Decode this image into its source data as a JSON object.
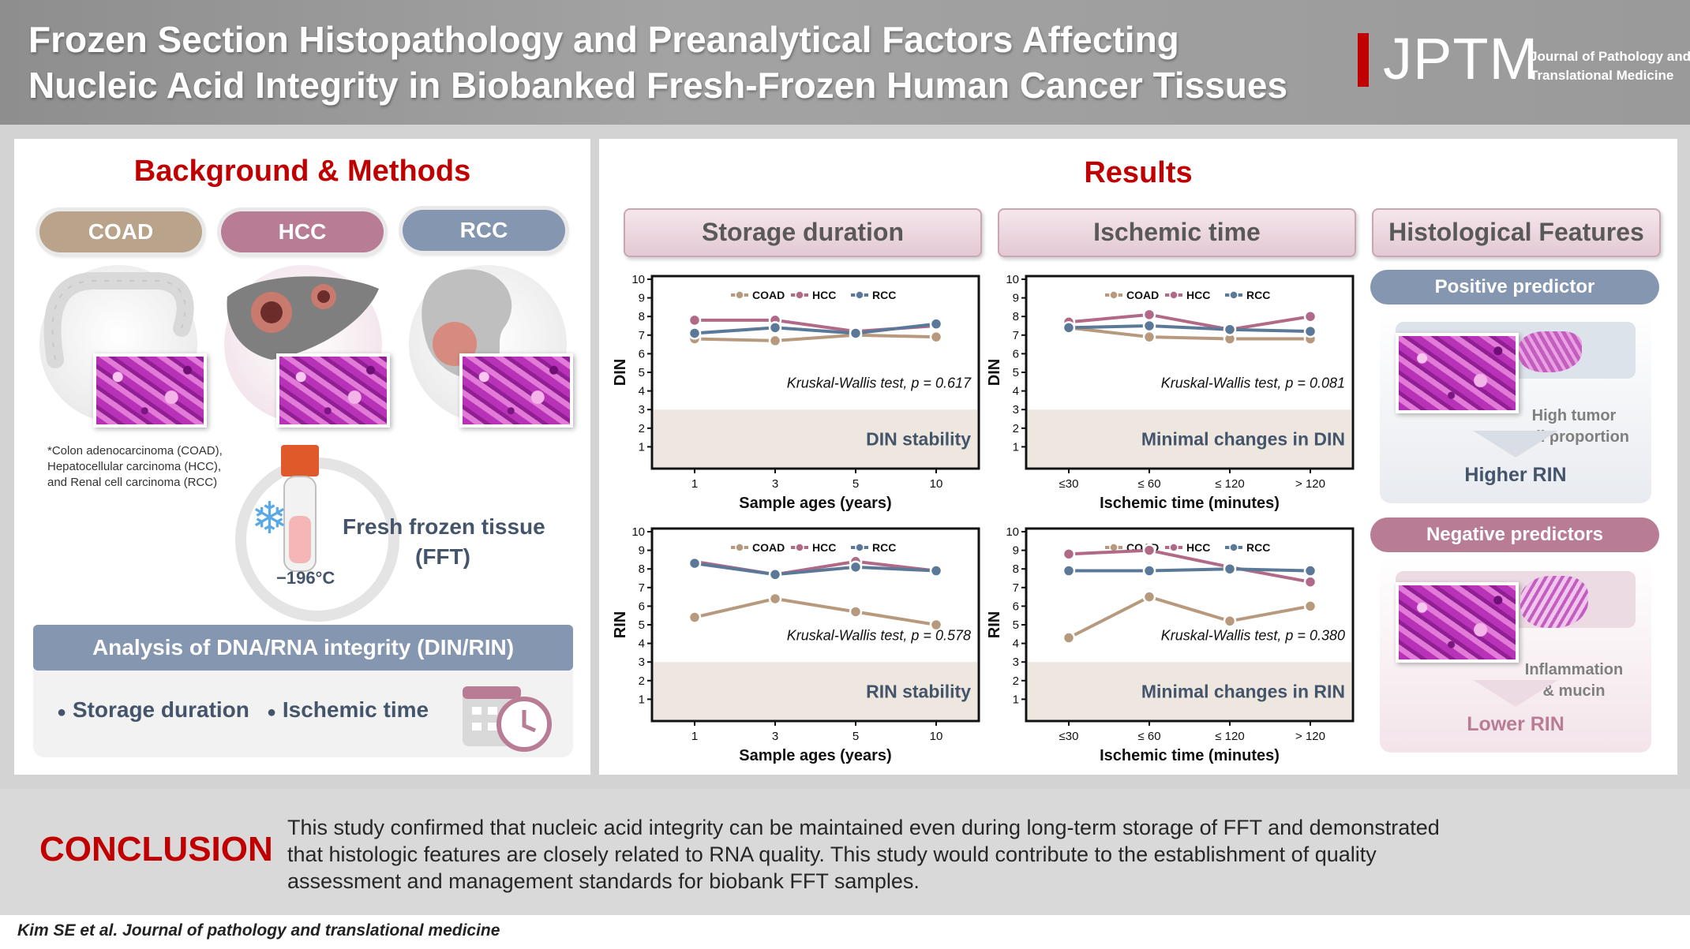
{
  "header": {
    "title_line1": "Frozen Section Histopathology and Preanalytical Factors Affecting",
    "title_line2": "Nucleic Acid Integrity in Biobanked Fresh-Frozen Human Cancer Tissues",
    "logo": "JPTM",
    "logo_sub1": "Journal of Pathology and",
    "logo_sub2": "Translational Medicine"
  },
  "left": {
    "title": "Background & Methods",
    "cancers": [
      "COAD",
      "HCC",
      "RCC"
    ],
    "note_lines": [
      "*Colon adenocarcinoma (COAD),",
      "Hepatocellular carcinoma (HCC),",
      "and Renal cell carcinoma (RCC)"
    ],
    "fft_line1": "Fresh frozen tissue",
    "fft_line2": "(FFT)",
    "temperature": "−196°C",
    "analysis_title": "Analysis of DNA/RNA integrity (DIN/RIN)",
    "bullets": [
      "Storage duration",
      "Ischemic time"
    ]
  },
  "results": {
    "title": "Results",
    "headers": [
      "Storage duration",
      "Ischemic time",
      "Histological Features"
    ],
    "positive": {
      "label": "Positive predictor",
      "text1": "High tumor",
      "text2": "cell proportion",
      "result": "Higher RIN"
    },
    "negative": {
      "label": "Negative predictors",
      "text1": "Inflammation",
      "text2": "& mucin",
      "result": "Lower RIN"
    }
  },
  "colors": {
    "COAD": "#b79a7e",
    "HCC": "#b06a88",
    "RCC": "#5b7898",
    "accent": "#c00000"
  },
  "chart_data": [
    {
      "type": "line",
      "categories": [
        "1",
        "3",
        "5",
        "10"
      ],
      "series": [
        {
          "name": "COAD",
          "values": [
            6.8,
            6.7,
            7.0,
            6.9
          ]
        },
        {
          "name": "HCC",
          "values": [
            7.8,
            7.8,
            7.2,
            7.5
          ]
        },
        {
          "name": "RCC",
          "values": [
            7.1,
            7.4,
            7.1,
            7.6
          ]
        }
      ],
      "xlabel": "Sample ages (years)",
      "ylabel": "DIN",
      "ylim": [
        0,
        10
      ],
      "yticks": [
        1,
        2,
        3,
        4,
        5,
        6,
        7,
        8,
        9,
        10
      ],
      "test": "Kruskal-Wallis test, p = 0.617",
      "banner": "DIN stability"
    },
    {
      "type": "line",
      "categories": [
        "≤30",
        "≤ 60",
        "≤ 120",
        "> 120"
      ],
      "series": [
        {
          "name": "COAD",
          "values": [
            7.4,
            6.9,
            6.8,
            6.8
          ]
        },
        {
          "name": "HCC",
          "values": [
            7.7,
            8.1,
            7.3,
            8.0
          ]
        },
        {
          "name": "RCC",
          "values": [
            7.4,
            7.5,
            7.3,
            7.2
          ]
        }
      ],
      "xlabel": "Ischemic time (minutes)",
      "ylabel": "DIN",
      "ylim": [
        0,
        10
      ],
      "yticks": [
        1,
        2,
        3,
        4,
        5,
        6,
        7,
        8,
        9,
        10
      ],
      "test": "Kruskal-Wallis test, p = 0.081",
      "banner": "Minimal changes in DIN"
    },
    {
      "type": "line",
      "categories": [
        "1",
        "3",
        "5",
        "10"
      ],
      "series": [
        {
          "name": "COAD",
          "values": [
            5.4,
            6.4,
            5.7,
            5.0
          ]
        },
        {
          "name": "HCC",
          "values": [
            8.4,
            7.7,
            8.4,
            7.9
          ]
        },
        {
          "name": "RCC",
          "values": [
            8.3,
            7.7,
            8.1,
            7.9
          ]
        }
      ],
      "xlabel": "Sample ages (years)",
      "ylabel": "RIN",
      "ylim": [
        0,
        10
      ],
      "yticks": [
        1,
        2,
        3,
        4,
        5,
        6,
        7,
        8,
        9,
        10
      ],
      "test": "Kruskal-Wallis test, p = 0.578",
      "banner": "RIN stability"
    },
    {
      "type": "line",
      "categories": [
        "≤30",
        "≤ 60",
        "≤ 120",
        "> 120"
      ],
      "series": [
        {
          "name": "COAD",
          "values": [
            4.3,
            6.5,
            5.2,
            6.0
          ]
        },
        {
          "name": "HCC",
          "values": [
            8.8,
            9.0,
            8.1,
            7.3
          ]
        },
        {
          "name": "RCC",
          "values": [
            7.9,
            7.9,
            8.0,
            7.9
          ]
        }
      ],
      "xlabel": "Ischemic time (minutes)",
      "ylabel": "RIN",
      "ylim": [
        0,
        10
      ],
      "yticks": [
        1,
        2,
        3,
        4,
        5,
        6,
        7,
        8,
        9,
        10
      ],
      "test": "Kruskal-Wallis test, p = 0.380",
      "banner": "Minimal changes in RIN"
    }
  ],
  "conclusion": {
    "label": "CONCLUSION",
    "lines": [
      "This study confirmed that nucleic acid integrity can be maintained even during long-term storage of FFT and demonstrated",
      "that histologic features are closely related to RNA quality. This study would contribute to the establishment of quality",
      "assessment and management standards for biobank FFT samples."
    ]
  },
  "footer": "Kim SE et al. Journal of pathology and translational medicine"
}
